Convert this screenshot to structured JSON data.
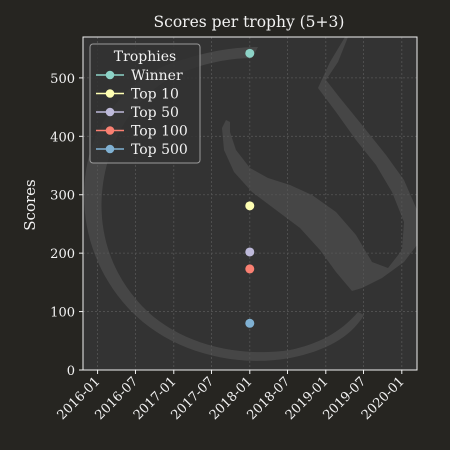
{
  "chart_data": {
    "type": "scatter",
    "title": "Scores per trophy (5+3)",
    "xlabel": "",
    "ylabel": "Scores",
    "x_axis": {
      "type": "date",
      "range": [
        "2015-10-23",
        "2020-03-14"
      ],
      "tick_labels": [
        "2016-01",
        "2016-07",
        "2017-01",
        "2017-07",
        "2018-01",
        "2018-07",
        "2019-01",
        "2019-07",
        "2020-01"
      ],
      "tick_values": [
        "2016-01-01",
        "2016-07-01",
        "2017-01-01",
        "2017-07-01",
        "2018-01-01",
        "2018-07-01",
        "2019-01-01",
        "2019-07-01",
        "2020-01-01"
      ]
    },
    "y_axis": {
      "range": [
        0,
        570
      ],
      "ticks": [
        0,
        100,
        200,
        300,
        400,
        500
      ]
    },
    "grid": true,
    "legend": {
      "title": "Trophies",
      "placement": "top-left"
    },
    "series": [
      {
        "name": "Winner",
        "color": "#8dd3c7",
        "points": [
          {
            "x": "2018-01-01",
            "y": 542
          }
        ]
      },
      {
        "name": "Top 10",
        "color": "#ffffb3",
        "points": [
          {
            "x": "2018-01-01",
            "y": 281
          }
        ]
      },
      {
        "name": "Top 50",
        "color": "#bebada",
        "points": [
          {
            "x": "2018-01-01",
            "y": 202
          }
        ]
      },
      {
        "name": "Top 100",
        "color": "#fa8072",
        "points": [
          {
            "x": "2018-01-01",
            "y": 173
          }
        ]
      },
      {
        "name": "Top 500",
        "color": "#80b1d3",
        "points": [
          {
            "x": "2018-01-01",
            "y": 80
          }
        ]
      }
    ]
  },
  "colors": {
    "background": "#262521",
    "plot_background": "#333333",
    "grid": "#555555",
    "axes": "#f2f2f2",
    "watermark": "#4a4a4a"
  },
  "watermark_icon": "horse-head-logo-icon"
}
